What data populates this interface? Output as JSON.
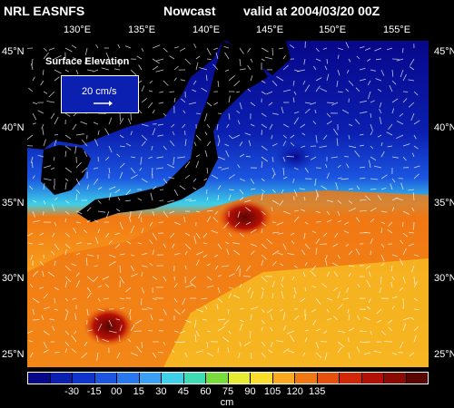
{
  "header": {
    "source": "NRL EASNFS",
    "product": "Nowcast",
    "valid": "valid at 2004/03/20 00Z"
  },
  "map": {
    "lon_labels": [
      "130°E",
      "135°E",
      "140°E",
      "145°E",
      "150°E",
      "155°E"
    ],
    "lat_labels": [
      "45°N",
      "40°N",
      "35°N",
      "30°N",
      "25°N"
    ],
    "lon_range": [
      127,
      157.5
    ],
    "lat_range": [
      23,
      46
    ],
    "field": "Surface Elevation",
    "vector_scale_label": "20 cm/s"
  },
  "colorbar": {
    "colors": [
      "#07078a",
      "#0b1fb0",
      "#0f35cc",
      "#1b55e0",
      "#2a78f0",
      "#3aa0f5",
      "#3dd0e8",
      "#3ddcb4",
      "#7adc3c",
      "#e6ec32",
      "#fadc2a",
      "#faa81e",
      "#f07814",
      "#e6500c",
      "#d22808",
      "#b41006",
      "#8c0a04",
      "#5a0502"
    ],
    "tick_labels": [
      "-30",
      "-15",
      "00",
      "15",
      "30",
      "45",
      "60",
      "75",
      "90",
      "105",
      "120",
      "135"
    ],
    "unit": "cm"
  }
}
